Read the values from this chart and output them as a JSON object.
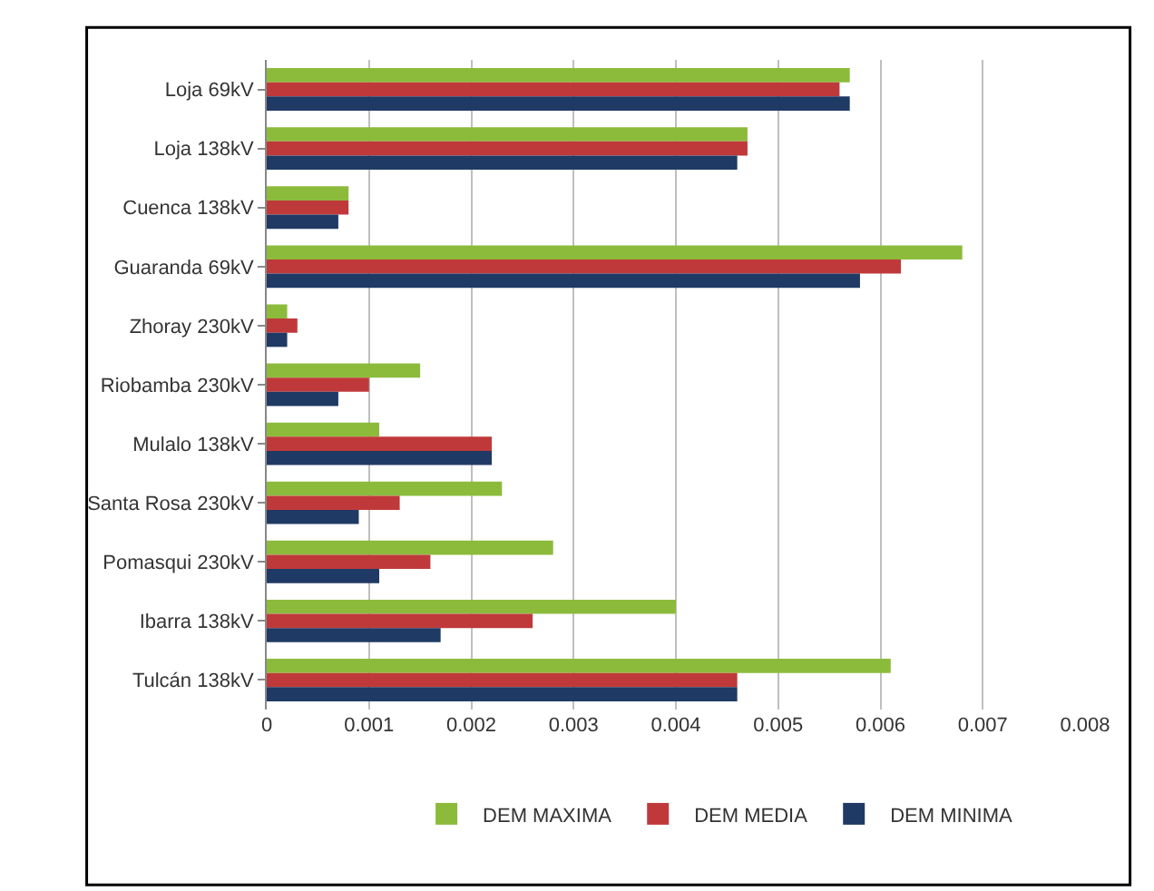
{
  "chart_data": {
    "type": "bar",
    "orientation": "horizontal",
    "categories": [
      "Loja 69kV",
      "Loja 138kV",
      "Cuenca 138kV",
      "Guaranda 69kV",
      "Zhoray 230kV",
      "Riobamba 230kV",
      "Mulalo 138kV",
      "Santa Rosa 230kV",
      "Pomasqui 230kV",
      "Ibarra 138kV",
      "Tulcán 138kV"
    ],
    "series": [
      {
        "name": "DEM MAXIMA",
        "color": "#8cbb3c",
        "values": [
          0.0057,
          0.0047,
          0.0008,
          0.0068,
          0.0002,
          0.0015,
          0.0011,
          0.0023,
          0.0028,
          0.004,
          0.0061
        ]
      },
      {
        "name": "DEM MEDIA",
        "color": "#c0393a",
        "values": [
          0.0056,
          0.0047,
          0.0008,
          0.0062,
          0.0003,
          0.001,
          0.0022,
          0.0013,
          0.0016,
          0.0026,
          0.0046
        ]
      },
      {
        "name": "DEM MINIMA",
        "color": "#1f3a64",
        "values": [
          0.0057,
          0.0046,
          0.0007,
          0.0058,
          0.0002,
          0.0007,
          0.0022,
          0.0009,
          0.0011,
          0.0017,
          0.0046
        ]
      }
    ],
    "xlim": [
      0,
      0.008
    ],
    "xticks": [
      0,
      0.001,
      0.002,
      0.003,
      0.004,
      0.005,
      0.006,
      0.007,
      0.008
    ],
    "grid": "x",
    "legend": "bottom"
  }
}
